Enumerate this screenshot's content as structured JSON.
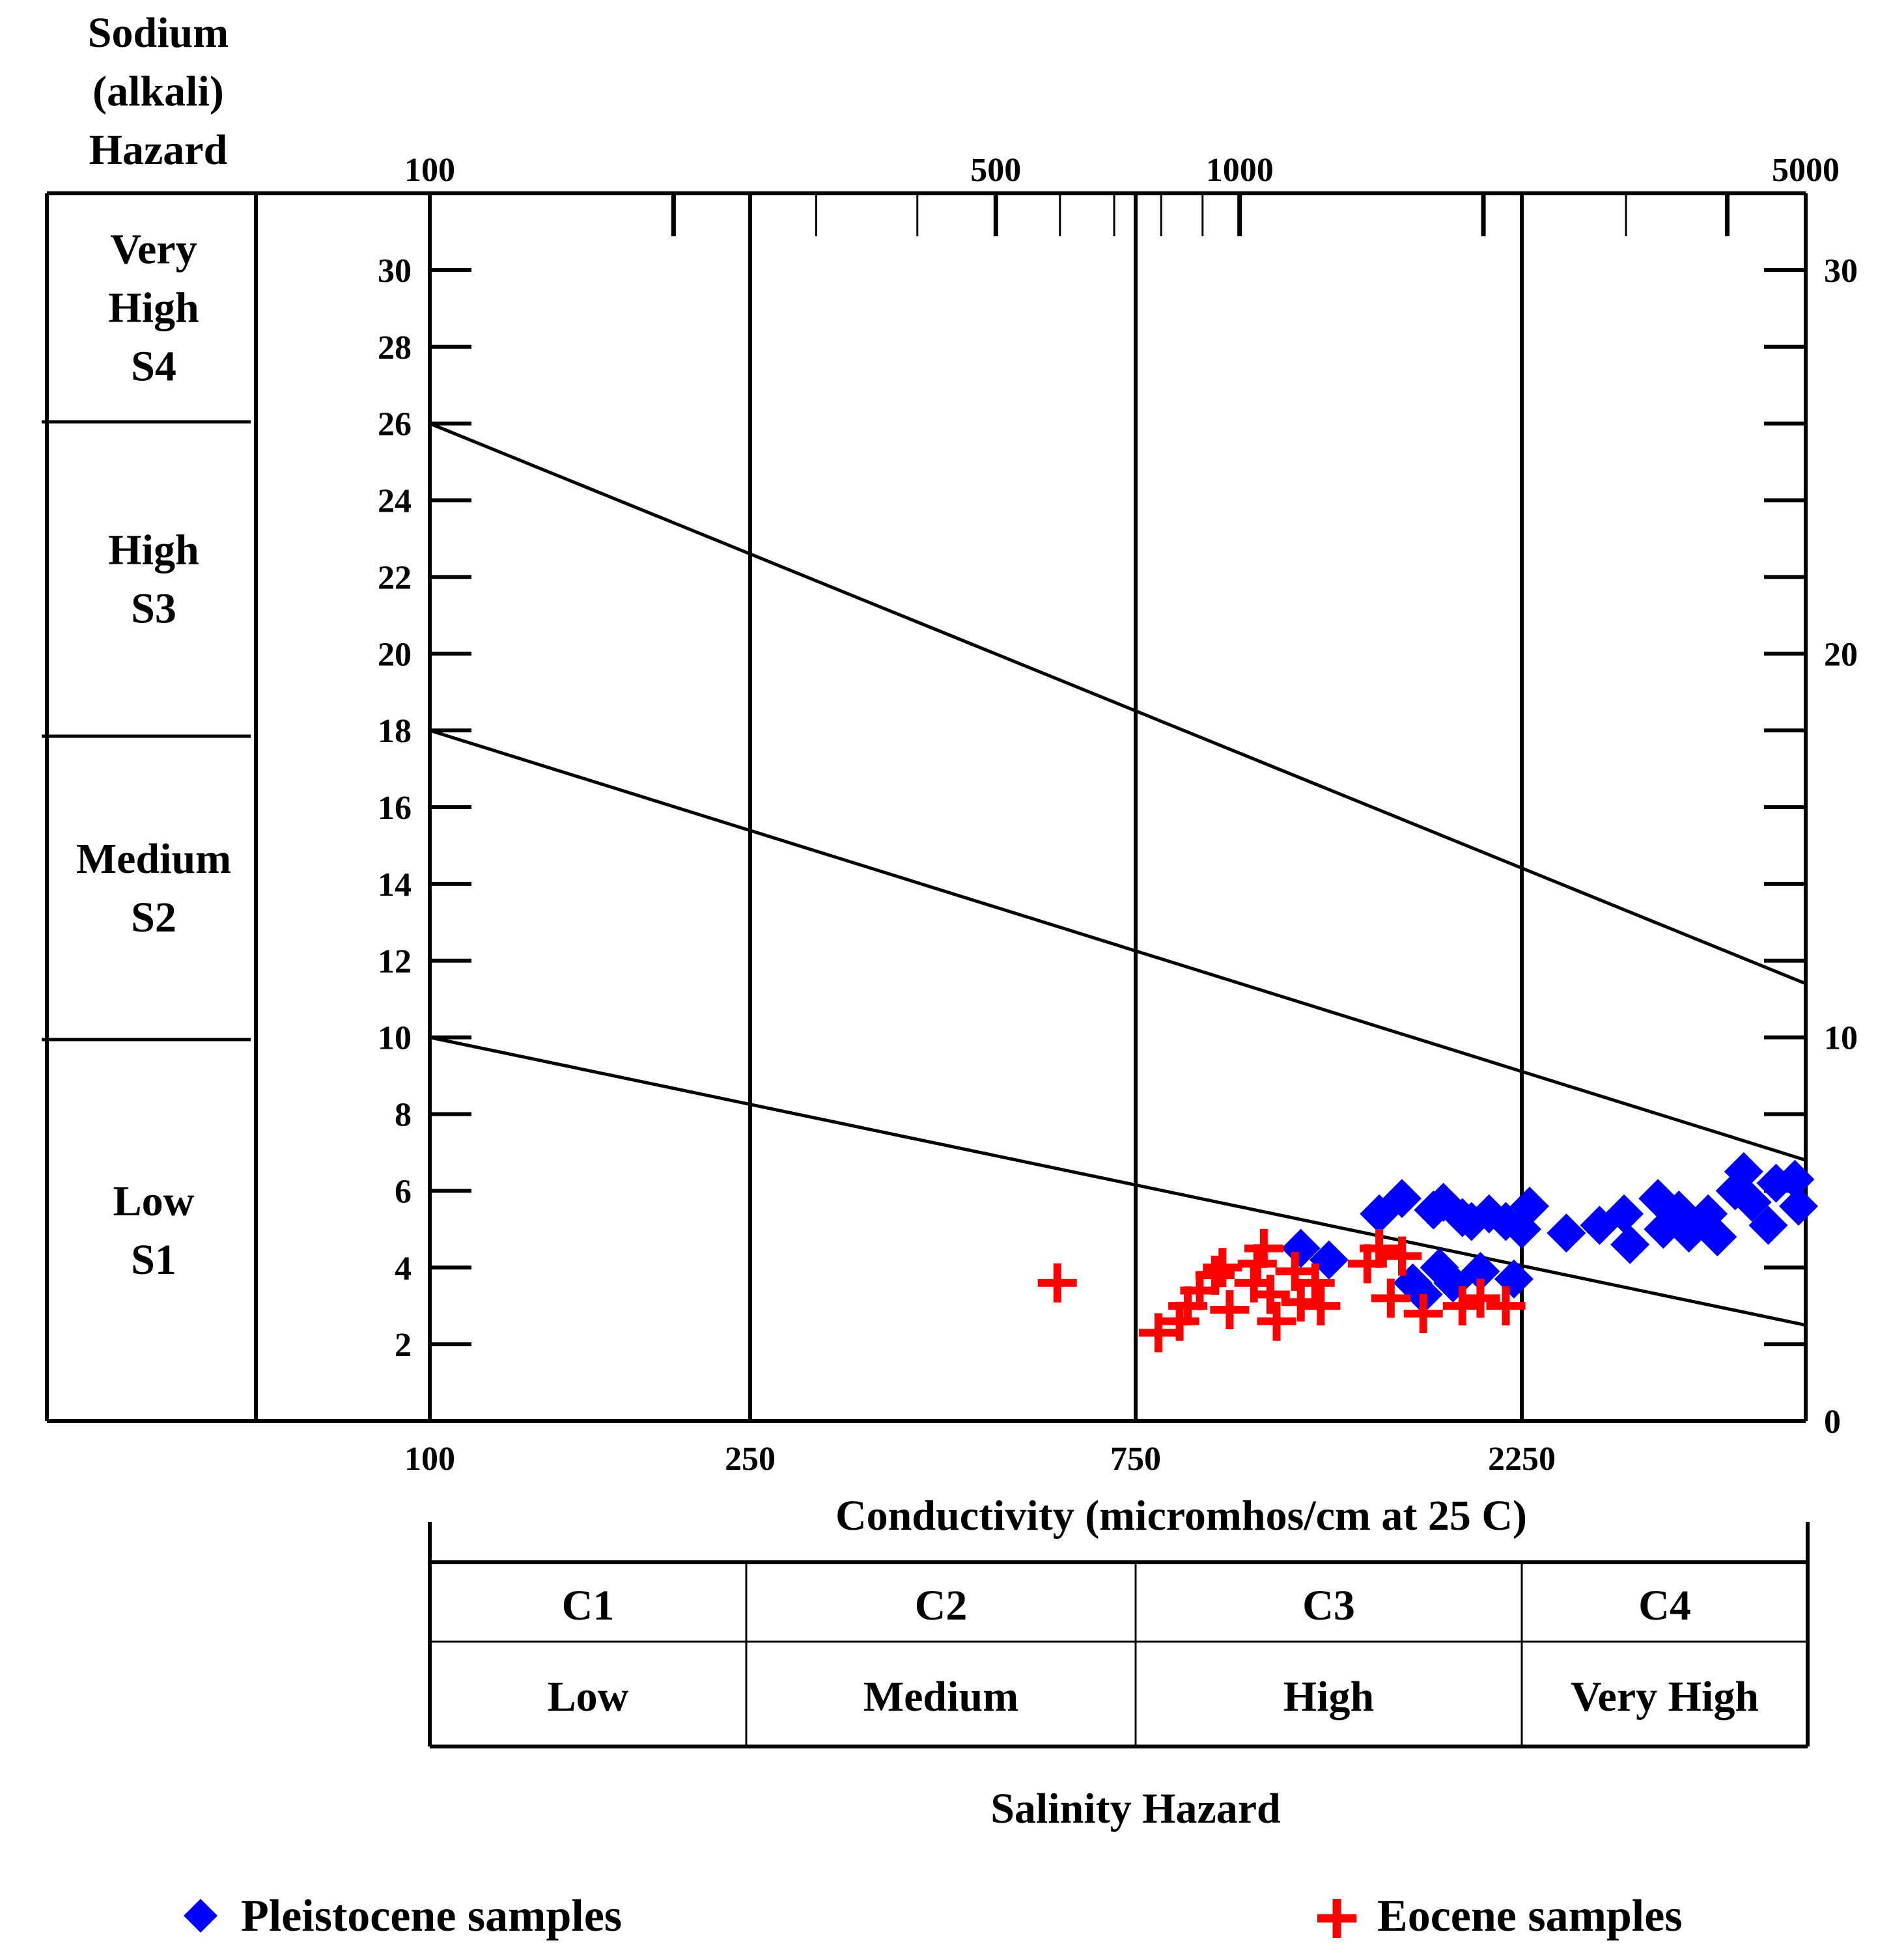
{
  "chart_data": {
    "type": "scatter",
    "title": "",
    "xlabel": "Conductivity (micromhos/cm at 25 C)",
    "ylabel": "Sodium (alkali) Hazard",
    "sodium_title_lines": [
      "Sodium",
      "(alkali)",
      "Hazard"
    ],
    "top_axis_tick_labels": [
      "100",
      "500",
      "1000",
      "5000"
    ],
    "bottom_axis_tick_labels": [
      "100",
      "250",
      "750",
      "2250"
    ],
    "left_axis_tick_labels": [
      "2",
      "4",
      "6",
      "8",
      "10",
      "12",
      "14",
      "16",
      "18",
      "20",
      "22",
      "24",
      "26",
      "28",
      "30"
    ],
    "right_axis_tick_labels": [
      "0",
      "10",
      "20",
      "30"
    ],
    "ylim": [
      0,
      32
    ],
    "sodium_classes": [
      {
        "lines": [
          "Very",
          "High",
          "S4"
        ]
      },
      {
        "lines": [
          "High",
          "S3"
        ]
      },
      {
        "lines": [
          "Medium",
          "S2"
        ]
      },
      {
        "lines": [
          "Low",
          "S1"
        ]
      }
    ],
    "salinity_classes": [
      {
        "code": "C1",
        "label": "Low"
      },
      {
        "code": "C2",
        "label": "Medium"
      },
      {
        "code": "C3",
        "label": "High"
      },
      {
        "code": "C4",
        "label": "Very High"
      }
    ],
    "salinity_title": "Salinity Hazard",
    "class_boundary_lines": [
      {
        "y_at_100": 26,
        "y_at_5000": 11.4
      },
      {
        "y_at_100": 18,
        "y_at_5000": 6.8
      },
      {
        "y_at_100": 10,
        "y_at_5000": 2.5
      }
    ],
    "series": [
      {
        "name": "Pleistocene samples",
        "marker": "diamond",
        "color": "#0000ff",
        "points": [
          {
            "x": 1200,
            "y": 4.5
          },
          {
            "x": 1300,
            "y": 4.2
          },
          {
            "x": 1500,
            "y": 5.4
          },
          {
            "x": 1600,
            "y": 5.8
          },
          {
            "x": 1650,
            "y": 3.6
          },
          {
            "x": 1700,
            "y": 3.3
          },
          {
            "x": 1750,
            "y": 5.5
          },
          {
            "x": 1780,
            "y": 4.0
          },
          {
            "x": 1800,
            "y": 5.7
          },
          {
            "x": 1850,
            "y": 3.6
          },
          {
            "x": 1900,
            "y": 5.3
          },
          {
            "x": 1950,
            "y": 5.2
          },
          {
            "x": 2000,
            "y": 3.9
          },
          {
            "x": 2050,
            "y": 5.4
          },
          {
            "x": 2150,
            "y": 5.2
          },
          {
            "x": 2200,
            "y": 3.7
          },
          {
            "x": 2250,
            "y": 5.0
          },
          {
            "x": 2300,
            "y": 5.6
          },
          {
            "x": 2550,
            "y": 4.9
          },
          {
            "x": 2800,
            "y": 5.1
          },
          {
            "x": 3000,
            "y": 5.4
          },
          {
            "x": 3050,
            "y": 4.6
          },
          {
            "x": 3300,
            "y": 5.8
          },
          {
            "x": 3350,
            "y": 5.0
          },
          {
            "x": 3500,
            "y": 5.5
          },
          {
            "x": 3600,
            "y": 4.9
          },
          {
            "x": 3800,
            "y": 5.4
          },
          {
            "x": 3900,
            "y": 4.8
          },
          {
            "x": 4100,
            "y": 6.0
          },
          {
            "x": 4200,
            "y": 6.5
          },
          {
            "x": 4300,
            "y": 5.7
          },
          {
            "x": 4500,
            "y": 5.1
          },
          {
            "x": 4600,
            "y": 6.2
          },
          {
            "x": 4850,
            "y": 6.3
          },
          {
            "x": 4900,
            "y": 5.6
          }
        ]
      },
      {
        "name": "Eocene samples",
        "marker": "plus",
        "color": "#ff0000",
        "points": [
          {
            "x": 600,
            "y": 3.6
          },
          {
            "x": 800,
            "y": 2.3
          },
          {
            "x": 850,
            "y": 2.6
          },
          {
            "x": 870,
            "y": 3.0
          },
          {
            "x": 900,
            "y": 3.4
          },
          {
            "x": 940,
            "y": 3.8
          },
          {
            "x": 960,
            "y": 4.0
          },
          {
            "x": 980,
            "y": 2.9
          },
          {
            "x": 1050,
            "y": 3.6
          },
          {
            "x": 1060,
            "y": 4.1
          },
          {
            "x": 1080,
            "y": 4.5
          },
          {
            "x": 1100,
            "y": 3.3
          },
          {
            "x": 1120,
            "y": 2.6
          },
          {
            "x": 1180,
            "y": 3.9
          },
          {
            "x": 1200,
            "y": 3.1
          },
          {
            "x": 1250,
            "y": 3.6
          },
          {
            "x": 1270,
            "y": 3.0
          },
          {
            "x": 1450,
            "y": 4.1
          },
          {
            "x": 1500,
            "y": 4.5
          },
          {
            "x": 1550,
            "y": 3.2
          },
          {
            "x": 1600,
            "y": 4.3
          },
          {
            "x": 1700,
            "y": 2.8
          },
          {
            "x": 1900,
            "y": 3.0
          },
          {
            "x": 2000,
            "y": 3.2
          },
          {
            "x": 2150,
            "y": 3.0
          }
        ]
      }
    ],
    "legend": [
      "Pleistocene samples",
      "Eocene samples"
    ],
    "legend_position": "bottom"
  }
}
